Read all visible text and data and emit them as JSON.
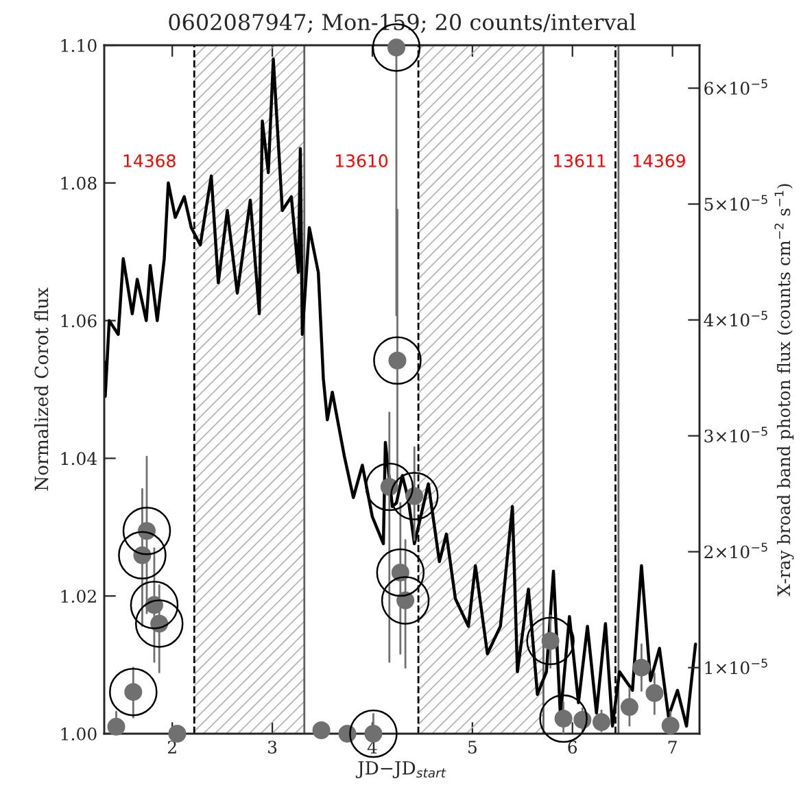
{
  "chart_data": {
    "type": "line",
    "title": "0602087947; Mon-159; 20 counts/interval",
    "xlabel": "JD−JD$_{start}$",
    "ylabel": "Normalized Corot flux",
    "y2label": "X-ray broad band photon flux (counts cm$^{−2}$ s$^{−1}$)",
    "xlim": [
      1.32,
      7.27
    ],
    "xticks": [
      2,
      3,
      4,
      5,
      6,
      7
    ],
    "ylim": [
      1.0,
      1.1
    ],
    "yticks": [
      {
        "value": 1.0,
        "label": "1.00"
      },
      {
        "value": 1.02,
        "label": "1.02"
      },
      {
        "value": 1.04,
        "label": "1.04"
      },
      {
        "value": 1.06,
        "label": "1.06"
      },
      {
        "value": 1.08,
        "label": "1.08"
      },
      {
        "value": 1.1,
        "label": "1.10"
      }
    ],
    "y2lim": [
      4.3e-06,
      6.37e-05
    ],
    "y2ticks": [
      {
        "value": 1e-05,
        "label": "1×10$^{−5}$"
      },
      {
        "value": 2e-05,
        "label": "2×10$^{−5}$"
      },
      {
        "value": 3e-05,
        "label": "3×10$^{−5}$"
      },
      {
        "value": 4e-05,
        "label": "4×10$^{−5}$"
      },
      {
        "value": 5e-05,
        "label": "5×10$^{−5}$"
      },
      {
        "value": 6e-05,
        "label": "6×10$^{−5}$"
      }
    ],
    "grid": false,
    "legend": false,
    "series": [
      {
        "color": "#000000",
        "marker": "none",
        "line_style": "solid",
        "x": [
          1.32,
          1.33,
          1.37,
          1.46,
          1.51,
          1.6,
          1.65,
          1.74,
          1.78,
          1.85,
          1.92,
          1.96,
          2.03,
          2.12,
          2.19,
          2.28,
          2.39,
          2.46,
          2.55,
          2.65,
          2.78,
          2.87,
          2.9,
          2.96,
          3.01,
          3.1,
          3.19,
          3.26,
          3.28,
          3.3,
          3.37,
          3.46,
          3.51,
          3.55,
          3.6,
          3.72,
          3.81,
          3.9,
          4.0,
          4.11,
          4.13,
          4.2,
          4.24,
          4.3,
          4.36,
          4.42,
          4.56,
          4.67,
          4.74,
          4.83,
          4.96,
          5.03,
          5.15,
          5.28,
          5.4,
          5.45,
          5.56,
          5.65,
          5.74,
          5.81,
          5.88,
          5.97,
          6.06,
          6.15,
          6.24,
          6.33,
          6.4,
          6.47,
          6.6,
          6.69,
          6.78,
          6.87,
          6.96,
          7.05,
          7.14,
          7.23
        ],
        "values": [
          1.054,
          1.049,
          1.06,
          1.058,
          1.069,
          1.061,
          1.066,
          1.06,
          1.068,
          1.06,
          1.069,
          1.08,
          1.075,
          1.078,
          1.0735,
          1.071,
          1.081,
          1.0655,
          1.076,
          1.064,
          1.0775,
          1.061,
          1.089,
          1.0815,
          1.098,
          1.076,
          1.078,
          1.067,
          1.085,
          1.058,
          1.0735,
          1.067,
          1.0516,
          1.0456,
          1.0496,
          1.0403,
          1.0343,
          1.039,
          1.0315,
          1.0276,
          1.0423,
          1.033,
          1.0335,
          1.0375,
          1.034,
          1.0276,
          1.0363,
          1.025,
          1.029,
          1.0196,
          1.0156,
          1.0244,
          1.0116,
          1.0156,
          1.033,
          1.009,
          1.021,
          1.0057,
          1.009,
          1.0236,
          1.0025,
          1.017,
          1.0045,
          1.0156,
          1.003,
          1.016,
          1.0011,
          1.009,
          1.0063,
          1.0244,
          1.0077,
          1.0124,
          1.0025,
          1.0063,
          1.0011,
          1.013
        ]
      },
      {
        "type": "scatter",
        "axis": "y2",
        "color": "#707070",
        "marker": "circle",
        "x": [
          1.44,
          1.61,
          1.7,
          1.745,
          1.82,
          1.87,
          2.05,
          3.49,
          3.75,
          4.01,
          4.17,
          4.24,
          4.25,
          4.28,
          4.33,
          4.42,
          5.78,
          5.91,
          6.1,
          6.29,
          6.57,
          6.69,
          6.82,
          6.98
        ],
        "values": [
          4.9e-06,
          7.9e-06,
          1.97e-05,
          2.18e-05,
          1.54e-05,
          1.38e-05,
          4.3e-06,
          4.6e-06,
          4.3e-06,
          4.3e-06,
          2.56e-05,
          6.35e-05,
          3.65e-05,
          1.82e-05,
          1.58e-05,
          2.48e-05,
          1.23e-05,
          5.6e-06,
          5.5e-06,
          5.3e-06,
          6.6e-06,
          1e-05,
          7.8e-06,
          5e-06
        ],
        "errors": [
          [
            4.3e-06,
            6.2e-06
          ],
          [
            5.7e-06,
            1e-05
          ],
          [
            1.36e-05,
            2.54e-05
          ],
          [
            1.47e-05,
            2.82e-05
          ],
          [
            1.05e-05,
            2.03e-05
          ],
          [
            9.6e-06,
            1.71e-05
          ],
          null,
          null,
          null,
          [
            4.3e-06,
            6e-06
          ],
          [
            1.05e-05,
            3.2e-05
          ],
          [
            4.04e-05,
            6.37e-05
          ],
          [
            2.6e-05,
            4.95e-05
          ],
          [
            1.12e-05,
            2.42e-05
          ],
          [
            1e-05,
            2.1e-05
          ],
          [
            2.1e-05,
            2.9e-05
          ],
          [
            1e-05,
            1.45e-05
          ],
          [
            4.3e-06,
            7e-06
          ],
          [
            4.5e-06,
            6.5e-06
          ],
          [
            4.5e-06,
            6.3e-06
          ],
          [
            5e-06,
            8.2e-06
          ],
          [
            8e-06,
            1.2e-05
          ],
          [
            6e-06,
            9.5e-06
          ],
          [
            4.3e-06,
            6.2e-06
          ]
        ]
      },
      {
        "type": "bubble",
        "axis": "y2",
        "color": "#000000",
        "x": [
          1.61,
          1.7,
          1.745,
          1.82,
          1.87,
          4.01,
          4.17,
          4.24,
          4.25,
          4.28,
          4.33,
          4.42,
          5.78,
          5.91
        ],
        "values": [
          7.9e-06,
          1.97e-05,
          2.18e-05,
          1.54e-05,
          1.38e-05,
          4.3e-06,
          2.56e-05,
          6.35e-05,
          3.65e-05,
          1.82e-05,
          1.58e-05,
          2.48e-05,
          1.23e-05,
          5.6e-06
        ],
        "sizes": [
          1,
          1,
          1,
          1,
          1,
          1,
          1,
          1,
          1,
          1,
          1,
          1,
          1,
          1
        ]
      }
    ],
    "bands": [
      {
        "axis": "x",
        "from": 2.22,
        "to": 3.32,
        "color": "#b0b0b0"
      },
      {
        "axis": "x",
        "from": 4.46,
        "to": 5.71,
        "color": "#b0b0b0"
      }
    ],
    "ref_lines": [
      {
        "axis": "x",
        "value": 2.22,
        "color": "#000000",
        "line_style": "dashed"
      },
      {
        "axis": "x",
        "value": 3.32,
        "color": "#606060",
        "line_style": "solid"
      },
      {
        "axis": "x",
        "value": 4.46,
        "color": "#000000",
        "line_style": "dashed"
      },
      {
        "axis": "x",
        "value": 5.71,
        "color": "#606060",
        "line_style": "solid"
      },
      {
        "axis": "x",
        "value": 6.43,
        "color": "#000000",
        "line_style": "dashed"
      },
      {
        "axis": "x",
        "value": 6.46,
        "color": "#606060",
        "line_style": "solid"
      }
    ],
    "annotations": [
      "14368",
      "13610",
      "13611",
      "14369"
    ]
  }
}
